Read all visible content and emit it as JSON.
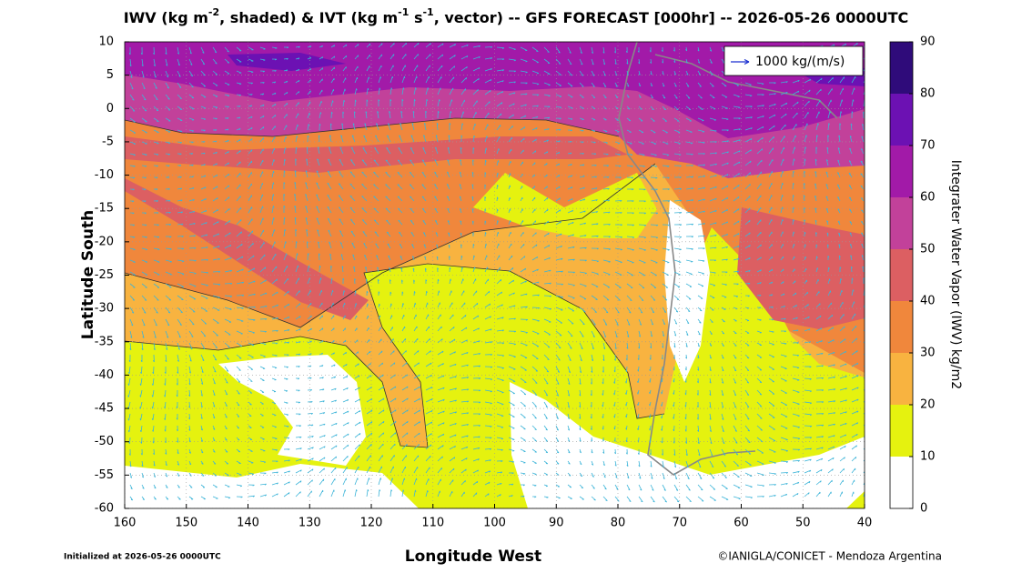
{
  "title_parts": [
    "IWV (kg m",
    "-2",
    ", shaded) & IVT (kg m",
    "-1",
    " s",
    "-1",
    ", vector) -- GFS FORECAST [000hr] -- 2026-05-26 0000UTC"
  ],
  "map": {
    "xlabel": "Longitude West",
    "ylabel": "Latitude South",
    "xlim": [
      160,
      40
    ],
    "xticks": [
      160,
      150,
      140,
      130,
      120,
      110,
      100,
      90,
      80,
      70,
      60,
      50,
      40
    ],
    "ylim": [
      -60,
      10
    ],
    "yticks": [
      10,
      5,
      0,
      -5,
      -10,
      -15,
      -20,
      -25,
      -30,
      -35,
      -40,
      -45,
      -50,
      -55,
      -60
    ],
    "grid": true
  },
  "legend": {
    "label": "1000 kg/(m/s)"
  },
  "colorbar": {
    "label": "Integrater Water Vapor (IWV) kg/m2",
    "lim": [
      0,
      90
    ],
    "ticks": [
      0,
      10,
      20,
      30,
      40,
      50,
      60,
      70,
      80,
      90
    ],
    "colors": [
      "#ffffff",
      "#e5f20f",
      "#f8b340",
      "#f0873c",
      "#dc5f62",
      "#c2419a",
      "#a21aa8",
      "#6c11b3",
      "#2f0b7a"
    ]
  },
  "footer": {
    "left": "Initialized at 2026-05-26 0000UTC",
    "right": "©IANIGLA/CONICET - Mendoza Argentina"
  }
}
